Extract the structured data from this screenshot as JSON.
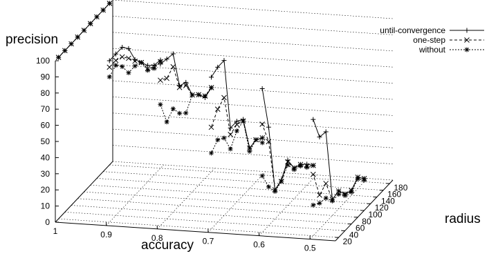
{
  "chart_data": {
    "type": "line",
    "variant": "3d-surface-lines",
    "xlabel": "accuracy",
    "ylabel": "radius",
    "zlabel": "precision",
    "x_ticks": [
      "1",
      "0.9",
      "0.8",
      "0.7",
      "0.6",
      "0.5"
    ],
    "y_ticks": [
      "20",
      "40",
      "60",
      "80",
      "100",
      "120",
      "140",
      "160",
      "180"
    ],
    "z_ticks": [
      "0",
      "10",
      "20",
      "30",
      "40",
      "50",
      "60",
      "70",
      "80",
      "90",
      "100"
    ],
    "xlim": [
      1,
      0.45
    ],
    "ylim": [
      10,
      190
    ],
    "zlim": [
      0,
      100
    ],
    "grid": true,
    "legend_position": "top-right",
    "legend_line_styles": [
      "solid",
      "dashed",
      "dotted"
    ],
    "series": [
      {
        "name": "until-convergence",
        "marker": "+",
        "lines": [
          {
            "x": [
              1,
              1,
              1,
              1,
              1,
              1,
              1,
              1,
              1
            ],
            "y": [
              180,
              160,
              140,
              120,
              100,
              80,
              60,
              40,
              20
            ],
            "z": [
              100,
              100,
              100,
              100,
              100,
              100,
              100,
              100,
              100
            ]
          },
          {
            "x": [
              0.9,
              0.9,
              0.9,
              0.9,
              0.9,
              0.9,
              0.9,
              0.9,
              0.9
            ],
            "y": [
              180,
              160,
              140,
              120,
              100,
              80,
              60,
              40,
              20
            ],
            "z": [
              67,
              68,
              72,
              78,
              84,
              95,
              100,
              100,
              100
            ]
          },
          {
            "x": [
              0.8,
              0.8,
              0.8,
              0.8,
              0.8,
              0.8,
              0.8,
              0.8,
              0.8
            ],
            "y": [
              180,
              160,
              140,
              120,
              100,
              80,
              60,
              40,
              20
            ],
            "z": [
              52,
              50,
              56,
              60,
              72,
              74,
              98,
              99,
              100
            ]
          },
          {
            "x": [
              0.7,
              0.7,
              0.7,
              0.7,
              0.7,
              0.7,
              0.7,
              0.7,
              0.7
            ],
            "y": [
              180,
              160,
              140,
              120,
              100,
              80,
              60,
              40,
              20
            ],
            "z": [
              23,
              26,
              25,
              47,
              50,
              50,
              96,
              96,
              94
            ]
          },
          {
            "x": [
              0.6,
              0.6,
              0.6,
              0.6,
              0.6,
              0.6,
              0.6,
              0.6,
              0.6
            ],
            "y": [
              180,
              160,
              140,
              120,
              100,
              80,
              60,
              40,
              20
            ],
            "z": [
              8,
              13,
              17,
              19,
              28,
              20,
              18,
              61,
              89
            ]
          },
          {
            "x": [
              0.5,
              0.5,
              0.5,
              0.5,
              0.5,
              0.5,
              0.5,
              0.5,
              0.5
            ],
            "y": [
              180,
              160,
              140,
              120,
              100,
              80,
              60,
              40,
              20
            ],
            "z": [
              2,
              7,
              3,
              5,
              11,
              10,
              56,
              57,
              72
            ]
          }
        ]
      },
      {
        "name": "one-step",
        "marker": "x",
        "lines": [
          {
            "x": [
              1,
              1,
              1,
              1,
              1,
              1,
              1,
              1,
              1
            ],
            "y": [
              180,
              160,
              140,
              120,
              100,
              80,
              60,
              40,
              20
            ],
            "z": [
              100,
              100,
              100,
              100,
              100,
              100,
              100,
              100,
              100
            ]
          },
          {
            "x": [
              0.9,
              0.9,
              0.9,
              0.9,
              0.9,
              0.9,
              0.9,
              0.9,
              0.9
            ],
            "y": [
              180,
              160,
              140,
              120,
              100,
              80,
              60,
              40,
              20
            ],
            "z": [
              66,
              67,
              70,
              78,
              83,
              89,
              94,
              96,
              96
            ]
          },
          {
            "x": [
              0.8,
              0.8,
              0.8,
              0.8,
              0.8,
              0.8,
              0.8,
              0.8,
              0.8
            ],
            "y": [
              180,
              160,
              140,
              120,
              100,
              80,
              60,
              40,
              20
            ],
            "z": [
              52,
              51,
              56,
              60,
              70,
              73,
              90,
              87,
              90
            ]
          },
          {
            "x": [
              0.7,
              0.7,
              0.7,
              0.7,
              0.7,
              0.7,
              0.7,
              0.7,
              0.7
            ],
            "y": [
              180,
              160,
              140,
              120,
              100,
              80,
              60,
              40,
              20
            ],
            "z": [
              23,
              26,
              25,
              46,
              48,
              46,
              73,
              70,
              63
            ]
          },
          {
            "x": [
              0.6,
              0.6,
              0.6,
              0.6,
              0.6,
              0.6,
              0.6,
              0.6,
              0.6
            ],
            "y": [
              180,
              160,
              140,
              120,
              100,
              80,
              60,
              40,
              20
            ],
            "z": [
              8,
              12,
              17,
              19,
              27,
              19,
              18,
              52,
              67
            ]
          },
          {
            "x": [
              0.5,
              0.5,
              0.5,
              0.5,
              0.5,
              0.5,
              0.5,
              0.5,
              0.5
            ],
            "y": [
              180,
              160,
              140,
              120,
              100,
              80,
              60,
              40,
              20
            ],
            "z": [
              2,
              7,
              3,
              5,
              11,
              10,
              24,
              21,
              38
            ]
          }
        ]
      },
      {
        "name": "without",
        "marker": "*",
        "lines": [
          {
            "x": [
              1,
              1,
              1,
              1,
              1,
              1,
              1,
              1,
              1
            ],
            "y": [
              180,
              160,
              140,
              120,
              100,
              80,
              60,
              40,
              20
            ],
            "z": [
              100,
              100,
              100,
              100,
              100,
              100,
              100,
              100,
              100
            ]
          },
          {
            "x": [
              0.9,
              0.9,
              0.9,
              0.9,
              0.9,
              0.9,
              0.9,
              0.9,
              0.9
            ],
            "y": [
              180,
              160,
              140,
              120,
              100,
              80,
              60,
              40,
              20
            ],
            "z": [
              66,
              66,
              69,
              78,
              80,
              80,
              88,
              93,
              90
            ]
          },
          {
            "x": [
              0.8,
              0.8,
              0.8,
              0.8,
              0.8,
              0.8,
              0.8,
              0.8,
              0.8
            ],
            "y": [
              180,
              160,
              140,
              120,
              100,
              80,
              60,
              40,
              20
            ],
            "z": [
              52,
              51,
              56,
              60,
              53,
              57,
              64,
              60,
              75
            ]
          },
          {
            "x": [
              0.7,
              0.7,
              0.7,
              0.7,
              0.7,
              0.7,
              0.7,
              0.7,
              0.7
            ],
            "y": [
              180,
              160,
              140,
              120,
              100,
              80,
              60,
              40,
              20
            ],
            "z": [
              20,
              26,
              23,
              46,
              44,
              37,
              48,
              51,
              47
            ]
          },
          {
            "x": [
              0.6,
              0.6,
              0.6,
              0.6,
              0.6,
              0.6,
              0.6,
              0.6,
              0.6
            ],
            "y": [
              180,
              160,
              140,
              120,
              100,
              80,
              60,
              40,
              20
            ],
            "z": [
              8,
              11,
              16,
              18,
              25,
              19,
              17,
              24,
              35
            ]
          },
          {
            "x": [
              0.5,
              0.5,
              0.5,
              0.5,
              0.5,
              0.5,
              0.5,
              0.5,
              0.5
            ],
            "y": [
              180,
              160,
              140,
              120,
              100,
              80,
              60,
              40,
              20
            ],
            "z": [
              1,
              6,
              2,
              4,
              9,
              9,
              15,
              16,
              19
            ]
          }
        ]
      }
    ]
  }
}
